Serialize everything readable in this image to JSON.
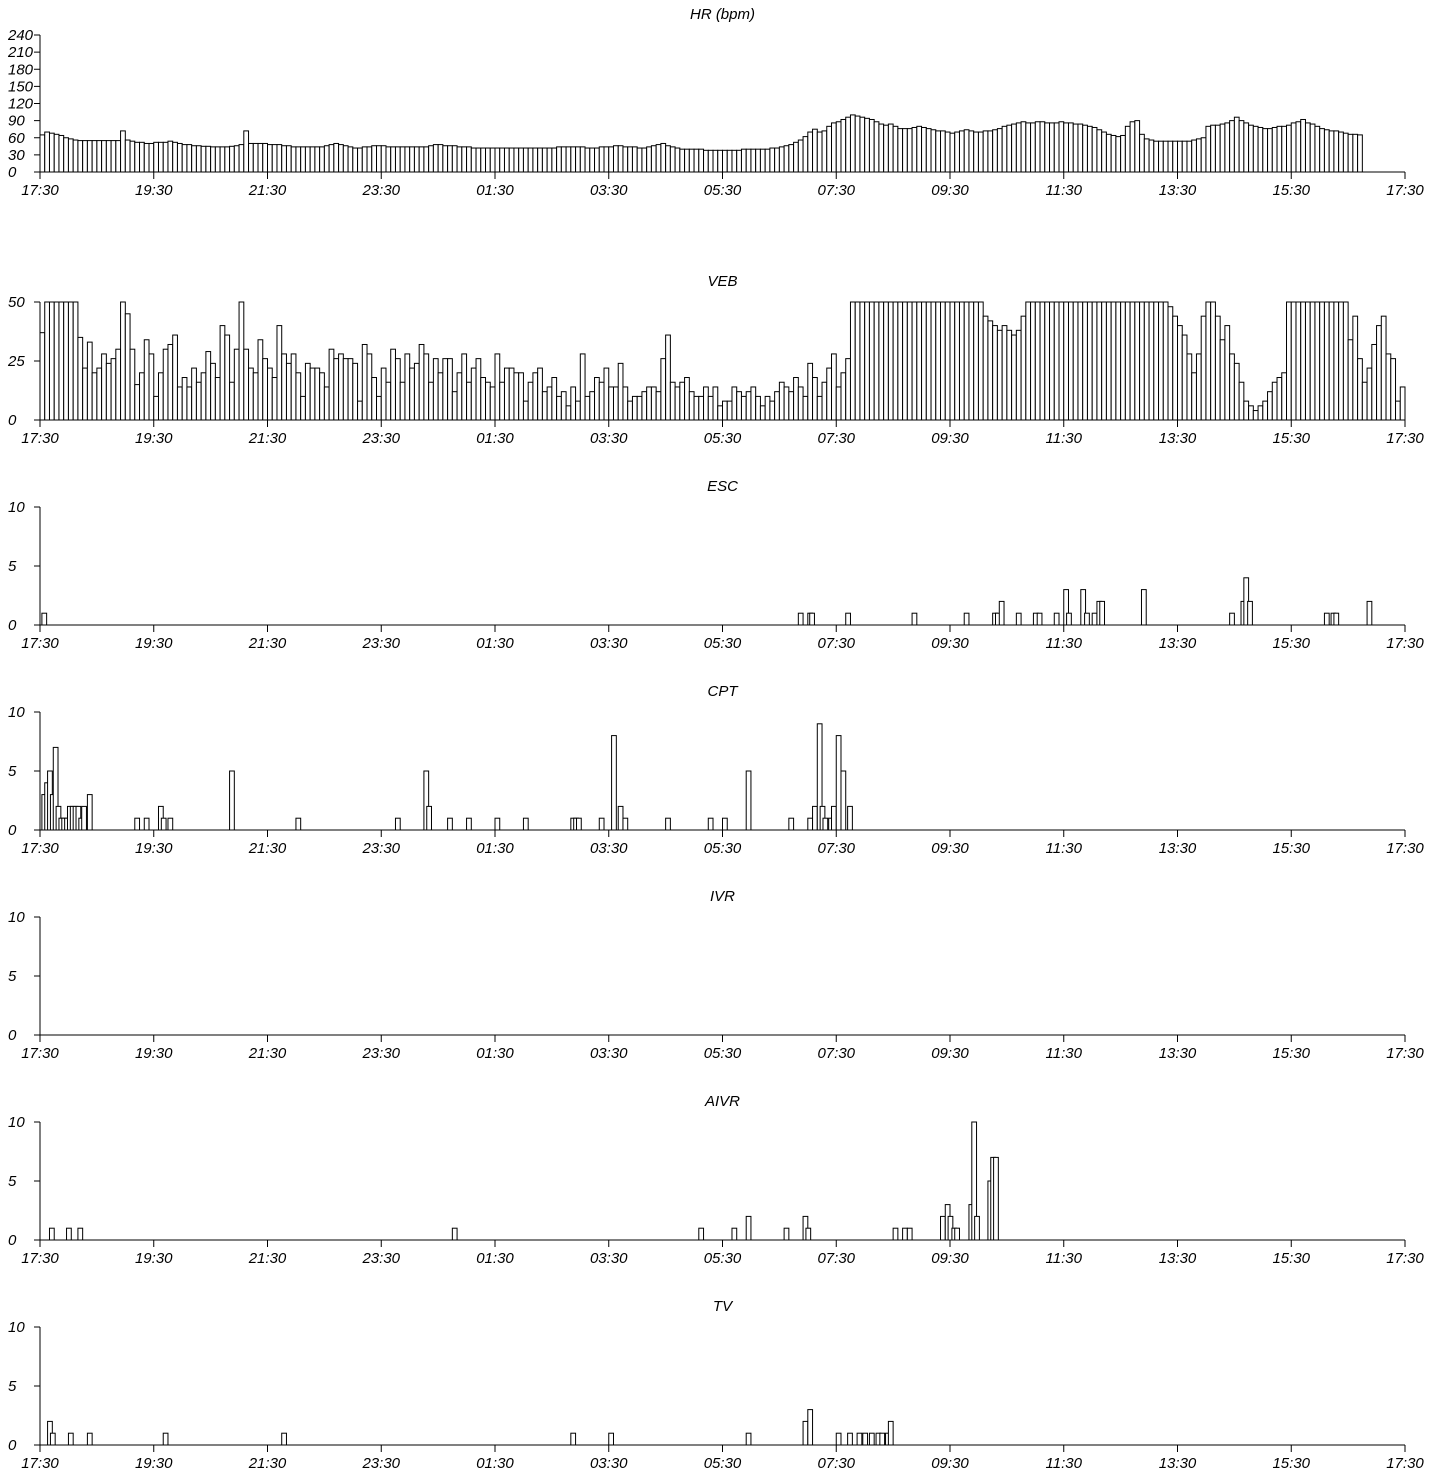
{
  "chart_data": [
    {
      "type": "bar",
      "title": "HR (bpm)",
      "ylim": [
        0,
        240
      ],
      "y_ticks": [
        "0",
        "30",
        "60",
        "90",
        "120",
        "150",
        "180",
        "210",
        "240"
      ],
      "x_ticks": [
        "17:30",
        "19:30",
        "21:30",
        "23:30",
        "01:30",
        "03:30",
        "05:30",
        "07:30",
        "09:30",
        "11:30",
        "13:30",
        "15:30",
        "17:30"
      ],
      "bin_minutes": 5,
      "values": [
        65,
        70,
        68,
        66,
        64,
        60,
        58,
        56,
        55,
        55,
        55,
        55,
        55,
        55,
        55,
        55,
        55,
        72,
        56,
        54,
        52,
        52,
        50,
        50,
        52,
        52,
        52,
        54,
        52,
        50,
        48,
        48,
        46,
        46,
        45,
        45,
        44,
        44,
        44,
        44,
        45,
        46,
        48,
        72,
        50,
        50,
        50,
        50,
        48,
        48,
        48,
        46,
        46,
        44,
        44,
        44,
        44,
        44,
        44,
        44,
        46,
        48,
        50,
        48,
        46,
        44,
        42,
        42,
        44,
        44,
        46,
        46,
        46,
        44,
        44,
        44,
        44,
        44,
        44,
        44,
        44,
        44,
        46,
        48,
        48,
        46,
        46,
        46,
        44,
        44,
        44,
        42,
        42,
        42,
        42,
        42,
        42,
        42,
        42,
        42,
        42,
        42,
        42,
        42,
        42,
        42,
        42,
        42,
        42,
        44,
        44,
        44,
        44,
        44,
        44,
        42,
        42,
        42,
        44,
        44,
        44,
        46,
        46,
        44,
        44,
        44,
        42,
        42,
        44,
        46,
        48,
        50,
        46,
        44,
        42,
        40,
        40,
        40,
        40,
        40,
        38,
        38,
        38,
        38,
        38,
        38,
        38,
        38,
        40,
        40,
        40,
        40,
        40,
        40,
        42,
        42,
        44,
        46,
        48,
        52,
        56,
        62,
        70,
        75,
        70,
        72,
        80,
        86,
        88,
        92,
        96,
        100,
        98,
        96,
        94,
        92,
        88,
        84,
        82,
        84,
        80,
        76,
        76,
        76,
        78,
        80,
        78,
        76,
        74,
        72,
        72,
        70,
        68,
        70,
        72,
        74,
        72,
        70,
        70,
        72,
        72,
        74,
        76,
        80,
        82,
        84,
        86,
        88,
        86,
        86,
        88,
        88,
        86,
        86,
        86,
        88,
        86,
        86,
        84,
        84,
        82,
        80,
        78,
        74,
        70,
        66,
        64,
        62,
        64,
        80,
        88,
        90,
        66,
        58,
        56,
        54,
        54,
        54,
        54,
        54,
        54,
        54,
        54,
        56,
        58,
        60,
        80,
        82,
        82,
        84,
        86,
        90,
        96,
        90,
        86,
        82,
        80,
        78,
        76,
        76,
        78,
        80,
        80,
        82,
        86,
        88,
        92,
        86,
        84,
        80,
        76,
        74,
        72,
        72,
        70,
        68,
        66,
        66,
        65
      ]
    },
    {
      "type": "bar",
      "title": "VEB",
      "ylim": [
        0,
        50
      ],
      "y_ticks": [
        "0",
        "25",
        "50"
      ],
      "x_ticks": [
        "17:30",
        "19:30",
        "21:30",
        "23:30",
        "01:30",
        "03:30",
        "05:30",
        "07:30",
        "09:30",
        "11:30",
        "13:30",
        "15:30",
        "17:30"
      ],
      "bin_minutes": 5,
      "values": [
        37,
        50,
        50,
        50,
        50,
        50,
        50,
        50,
        35,
        22,
        33,
        20,
        22,
        28,
        24,
        26,
        30,
        50,
        45,
        30,
        15,
        20,
        34,
        28,
        10,
        20,
        30,
        32,
        36,
        14,
        18,
        14,
        22,
        16,
        20,
        29,
        24,
        18,
        40,
        36,
        16,
        30,
        50,
        30,
        22,
        20,
        34,
        26,
        22,
        18,
        40,
        28,
        24,
        28,
        20,
        10,
        24,
        22,
        22,
        20,
        14,
        30,
        26,
        28,
        26,
        26,
        24,
        8,
        32,
        28,
        18,
        10,
        22,
        16,
        30,
        26,
        16,
        28,
        22,
        24,
        32,
        28,
        16,
        26,
        20,
        26,
        26,
        12,
        20,
        28,
        16,
        22,
        26,
        18,
        16,
        14,
        28,
        16,
        22,
        22,
        20,
        20,
        8,
        16,
        20,
        22,
        12,
        14,
        18,
        10,
        12,
        6,
        14,
        8,
        28,
        10,
        12,
        18,
        16,
        22,
        14,
        14,
        24,
        14,
        8,
        10,
        10,
        12,
        14,
        14,
        12,
        26,
        36,
        16,
        14,
        16,
        18,
        12,
        10,
        10,
        14,
        10,
        14,
        6,
        8,
        8,
        14,
        12,
        10,
        12,
        14,
        10,
        6,
        10,
        8,
        12,
        16,
        14,
        12,
        18,
        14,
        10,
        24,
        18,
        10,
        16,
        22,
        28,
        14,
        20,
        26,
        50,
        50,
        50,
        50,
        50,
        50,
        50,
        50,
        50,
        50,
        50,
        50,
        50,
        50,
        50,
        50,
        50,
        50,
        50,
        50,
        50,
        50,
        50,
        50,
        50,
        50,
        50,
        50,
        44,
        42,
        40,
        38,
        40,
        38,
        36,
        38,
        44,
        50,
        50,
        50,
        50,
        50,
        50,
        50,
        50,
        50,
        50,
        50,
        50,
        50,
        50,
        50,
        50,
        50,
        50,
        50,
        50,
        50,
        50,
        50,
        50,
        50,
        50,
        50,
        50,
        50,
        50,
        48,
        44,
        40,
        36,
        28,
        20,
        28,
        44,
        50,
        50,
        44,
        34,
        40,
        28,
        24,
        16,
        8,
        6,
        4,
        6,
        8,
        12,
        16,
        18,
        20,
        50,
        50,
        50,
        50,
        50,
        50,
        50,
        50,
        50,
        50,
        50,
        50,
        50,
        34,
        44,
        26,
        16,
        22,
        32,
        40,
        44,
        28,
        26,
        8,
        14,
        30,
        50,
        50,
        50,
        50,
        50,
        50,
        40,
        36,
        34,
        32,
        36,
        30,
        34,
        40,
        32,
        26,
        22,
        24,
        30,
        36,
        42,
        30
      ]
    },
    {
      "type": "bar",
      "title": "ESC",
      "ylim": [
        0,
        10
      ],
      "y_ticks": [
        "0",
        "5",
        "10"
      ],
      "x_ticks": [
        "17:30",
        "19:30",
        "21:30",
        "23:30",
        "01:30",
        "03:30",
        "05:30",
        "07:30",
        "09:30",
        "11:30",
        "13:30",
        "15:30",
        "17:30"
      ],
      "bin_minutes": 5,
      "events": [
        {
          "time": "17:32",
          "value": 1
        },
        {
          "time": "06:50",
          "value": 1
        },
        {
          "time": "07:00",
          "value": 1
        },
        {
          "time": "07:02",
          "value": 1
        },
        {
          "time": "07:40",
          "value": 1
        },
        {
          "time": "08:50",
          "value": 1
        },
        {
          "time": "09:45",
          "value": 1
        },
        {
          "time": "10:15",
          "value": 1
        },
        {
          "time": "10:18",
          "value": 1
        },
        {
          "time": "10:22",
          "value": 2
        },
        {
          "time": "10:40",
          "value": 1
        },
        {
          "time": "10:58",
          "value": 1
        },
        {
          "time": "11:02",
          "value": 1
        },
        {
          "time": "11:20",
          "value": 1
        },
        {
          "time": "11:30",
          "value": 3
        },
        {
          "time": "11:33",
          "value": 1
        },
        {
          "time": "11:48",
          "value": 3
        },
        {
          "time": "11:52",
          "value": 1
        },
        {
          "time": "12:00",
          "value": 1
        },
        {
          "time": "12:05",
          "value": 2
        },
        {
          "time": "12:08",
          "value": 2
        },
        {
          "time": "12:52",
          "value": 3
        },
        {
          "time": "14:25",
          "value": 1
        },
        {
          "time": "14:37",
          "value": 2
        },
        {
          "time": "14:40",
          "value": 4
        },
        {
          "time": "14:44",
          "value": 2
        },
        {
          "time": "16:05",
          "value": 1
        },
        {
          "time": "16:12",
          "value": 1
        },
        {
          "time": "16:15",
          "value": 1
        },
        {
          "time": "16:50",
          "value": 2
        }
      ]
    },
    {
      "type": "bar",
      "title": "CPT",
      "ylim": [
        0,
        10
      ],
      "y_ticks": [
        "0",
        "5",
        "10"
      ],
      "x_ticks": [
        "17:30",
        "19:30",
        "21:30",
        "23:30",
        "01:30",
        "03:30",
        "05:30",
        "07:30",
        "09:30",
        "11:30",
        "13:30",
        "15:30",
        "17:30"
      ],
      "bin_minutes": 5,
      "events": [
        {
          "time": "17:32",
          "value": 3
        },
        {
          "time": "17:35",
          "value": 4
        },
        {
          "time": "17:38",
          "value": 5
        },
        {
          "time": "17:41",
          "value": 3
        },
        {
          "time": "17:44",
          "value": 7
        },
        {
          "time": "17:47",
          "value": 2
        },
        {
          "time": "17:50",
          "value": 1
        },
        {
          "time": "17:53",
          "value": 1
        },
        {
          "time": "17:56",
          "value": 1
        },
        {
          "time": "17:59",
          "value": 2
        },
        {
          "time": "18:02",
          "value": 2
        },
        {
          "time": "18:05",
          "value": 2
        },
        {
          "time": "18:08",
          "value": 2
        },
        {
          "time": "18:11",
          "value": 1
        },
        {
          "time": "18:14",
          "value": 2
        },
        {
          "time": "18:20",
          "value": 3
        },
        {
          "time": "19:10",
          "value": 1
        },
        {
          "time": "19:20",
          "value": 1
        },
        {
          "time": "19:35",
          "value": 2
        },
        {
          "time": "19:38",
          "value": 1
        },
        {
          "time": "19:45",
          "value": 1
        },
        {
          "time": "20:50",
          "value": 5
        },
        {
          "time": "22:00",
          "value": 1
        },
        {
          "time": "23:45",
          "value": 1
        },
        {
          "time": "00:15",
          "value": 5
        },
        {
          "time": "00:18",
          "value": 2
        },
        {
          "time": "00:40",
          "value": 1
        },
        {
          "time": "01:00",
          "value": 1
        },
        {
          "time": "01:30",
          "value": 1
        },
        {
          "time": "02:00",
          "value": 1
        },
        {
          "time": "02:50",
          "value": 1
        },
        {
          "time": "02:53",
          "value": 1
        },
        {
          "time": "02:56",
          "value": 1
        },
        {
          "time": "03:20",
          "value": 1
        },
        {
          "time": "03:33",
          "value": 8
        },
        {
          "time": "03:40",
          "value": 2
        },
        {
          "time": "03:45",
          "value": 1
        },
        {
          "time": "04:30",
          "value": 1
        },
        {
          "time": "05:15",
          "value": 1
        },
        {
          "time": "05:30",
          "value": 1
        },
        {
          "time": "05:55",
          "value": 5
        },
        {
          "time": "06:40",
          "value": 1
        },
        {
          "time": "07:00",
          "value": 1
        },
        {
          "time": "07:05",
          "value": 2
        },
        {
          "time": "07:10",
          "value": 9
        },
        {
          "time": "07:13",
          "value": 2
        },
        {
          "time": "07:16",
          "value": 1
        },
        {
          "time": "07:22",
          "value": 1
        },
        {
          "time": "07:25",
          "value": 2
        },
        {
          "time": "07:30",
          "value": 8
        },
        {
          "time": "07:35",
          "value": 5
        },
        {
          "time": "07:42",
          "value": 2
        }
      ]
    },
    {
      "type": "bar",
      "title": "IVR",
      "ylim": [
        0,
        10
      ],
      "y_ticks": [
        "0",
        "5",
        "10"
      ],
      "x_ticks": [
        "17:30",
        "19:30",
        "21:30",
        "23:30",
        "01:30",
        "03:30",
        "05:30",
        "07:30",
        "09:30",
        "11:30",
        "13:30",
        "15:30",
        "17:30"
      ],
      "bin_minutes": 5,
      "events": []
    },
    {
      "type": "bar",
      "title": "AIVR",
      "ylim": [
        0,
        10
      ],
      "y_ticks": [
        "0",
        "5",
        "10"
      ],
      "x_ticks": [
        "17:30",
        "19:30",
        "21:30",
        "23:30",
        "01:30",
        "03:30",
        "05:30",
        "07:30",
        "09:30",
        "11:30",
        "13:30",
        "15:30",
        "17:30"
      ],
      "bin_minutes": 5,
      "events": [
        {
          "time": "17:40",
          "value": 1
        },
        {
          "time": "17:58",
          "value": 1
        },
        {
          "time": "18:10",
          "value": 1
        },
        {
          "time": "00:45",
          "value": 1
        },
        {
          "time": "05:05",
          "value": 1
        },
        {
          "time": "05:40",
          "value": 1
        },
        {
          "time": "05:55",
          "value": 2
        },
        {
          "time": "06:35",
          "value": 1
        },
        {
          "time": "06:55",
          "value": 2
        },
        {
          "time": "06:58",
          "value": 1
        },
        {
          "time": "08:30",
          "value": 1
        },
        {
          "time": "08:40",
          "value": 1
        },
        {
          "time": "08:45",
          "value": 1
        },
        {
          "time": "09:20",
          "value": 2
        },
        {
          "time": "09:25",
          "value": 3
        },
        {
          "time": "09:28",
          "value": 2
        },
        {
          "time": "09:32",
          "value": 1
        },
        {
          "time": "09:35",
          "value": 1
        },
        {
          "time": "09:50",
          "value": 3
        },
        {
          "time": "09:53",
          "value": 10
        },
        {
          "time": "09:56",
          "value": 2
        },
        {
          "time": "10:10",
          "value": 5
        },
        {
          "time": "10:13",
          "value": 7
        },
        {
          "time": "10:16",
          "value": 7
        }
      ]
    },
    {
      "type": "bar",
      "title": "TV",
      "ylim": [
        0,
        10
      ],
      "y_ticks": [
        "0",
        "5",
        "10"
      ],
      "x_ticks": [
        "17:30",
        "19:30",
        "21:30",
        "23:30",
        "01:30",
        "03:30",
        "05:30",
        "07:30",
        "09:30",
        "11:30",
        "13:30",
        "15:30",
        "17:30"
      ],
      "bin_minutes": 5,
      "events": [
        {
          "time": "17:38",
          "value": 2
        },
        {
          "time": "17:41",
          "value": 1
        },
        {
          "time": "18:00",
          "value": 1
        },
        {
          "time": "18:20",
          "value": 1
        },
        {
          "time": "19:40",
          "value": 1
        },
        {
          "time": "21:45",
          "value": 1
        },
        {
          "time": "02:50",
          "value": 1
        },
        {
          "time": "03:30",
          "value": 1
        },
        {
          "time": "05:55",
          "value": 1
        },
        {
          "time": "06:55",
          "value": 2
        },
        {
          "time": "07:00",
          "value": 3
        },
        {
          "time": "07:30",
          "value": 1
        },
        {
          "time": "07:42",
          "value": 1
        },
        {
          "time": "07:52",
          "value": 1
        },
        {
          "time": "07:58",
          "value": 1
        },
        {
          "time": "08:05",
          "value": 1
        },
        {
          "time": "08:12",
          "value": 1
        },
        {
          "time": "08:16",
          "value": 1
        },
        {
          "time": "08:22",
          "value": 1
        },
        {
          "time": "08:25",
          "value": 2
        }
      ]
    }
  ]
}
